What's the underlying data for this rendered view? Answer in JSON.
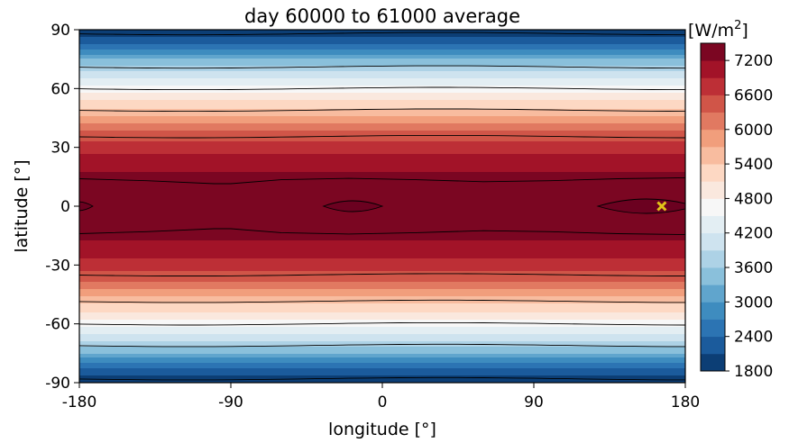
{
  "chart_data": {
    "type": "heatmap",
    "title": "day 60000 to 61000 average",
    "xlabel": "longitude [°]",
    "ylabel": "latitude [°]",
    "xlim": [
      -180,
      180
    ],
    "ylim": [
      -90,
      90
    ],
    "xticks": [
      -180,
      -90,
      0,
      90,
      180
    ],
    "xtick_labels": [
      "-180",
      "-90",
      "0",
      "90",
      "180"
    ],
    "yticks": [
      90,
      60,
      30,
      0,
      -30,
      -60,
      -90
    ],
    "ytick_labels": [
      "90",
      "60",
      "30",
      "0",
      "-30",
      "-60",
      "-90"
    ],
    "colorbar": {
      "label_prefix": "[W/m",
      "label_exp": "2",
      "label_suffix": "]",
      "range": [
        1800,
        7500
      ],
      "ticks": [
        1800,
        2400,
        3000,
        3600,
        4200,
        4800,
        5400,
        6000,
        6600,
        7200
      ],
      "tick_labels": [
        "1800",
        "2400",
        "3000",
        "3600",
        "4200",
        "4800",
        "5400",
        "6000",
        "6600",
        "7200"
      ],
      "colormap": "RdBu_r",
      "level_step": 300
    },
    "field_profile": [
      {
        "lat": 90,
        "value": 1800
      },
      {
        "lat": 85,
        "value": 2200
      },
      {
        "lat": 80,
        "value": 2700
      },
      {
        "lat": 75,
        "value": 3300
      },
      {
        "lat": 70,
        "value": 3800
      },
      {
        "lat": 65,
        "value": 4200
      },
      {
        "lat": 60,
        "value": 4600
      },
      {
        "lat": 55,
        "value": 5000
      },
      {
        "lat": 50,
        "value": 5400
      },
      {
        "lat": 45,
        "value": 5800
      },
      {
        "lat": 40,
        "value": 6200
      },
      {
        "lat": 35,
        "value": 6500
      },
      {
        "lat": 30,
        "value": 6750
      },
      {
        "lat": 25,
        "value": 7000
      },
      {
        "lat": 20,
        "value": 7150
      },
      {
        "lat": 15,
        "value": 7250
      },
      {
        "lat": 0,
        "value": 7350
      }
    ],
    "max_marker": {
      "lon": 166,
      "lat": 0,
      "color": "#e0c419"
    }
  }
}
